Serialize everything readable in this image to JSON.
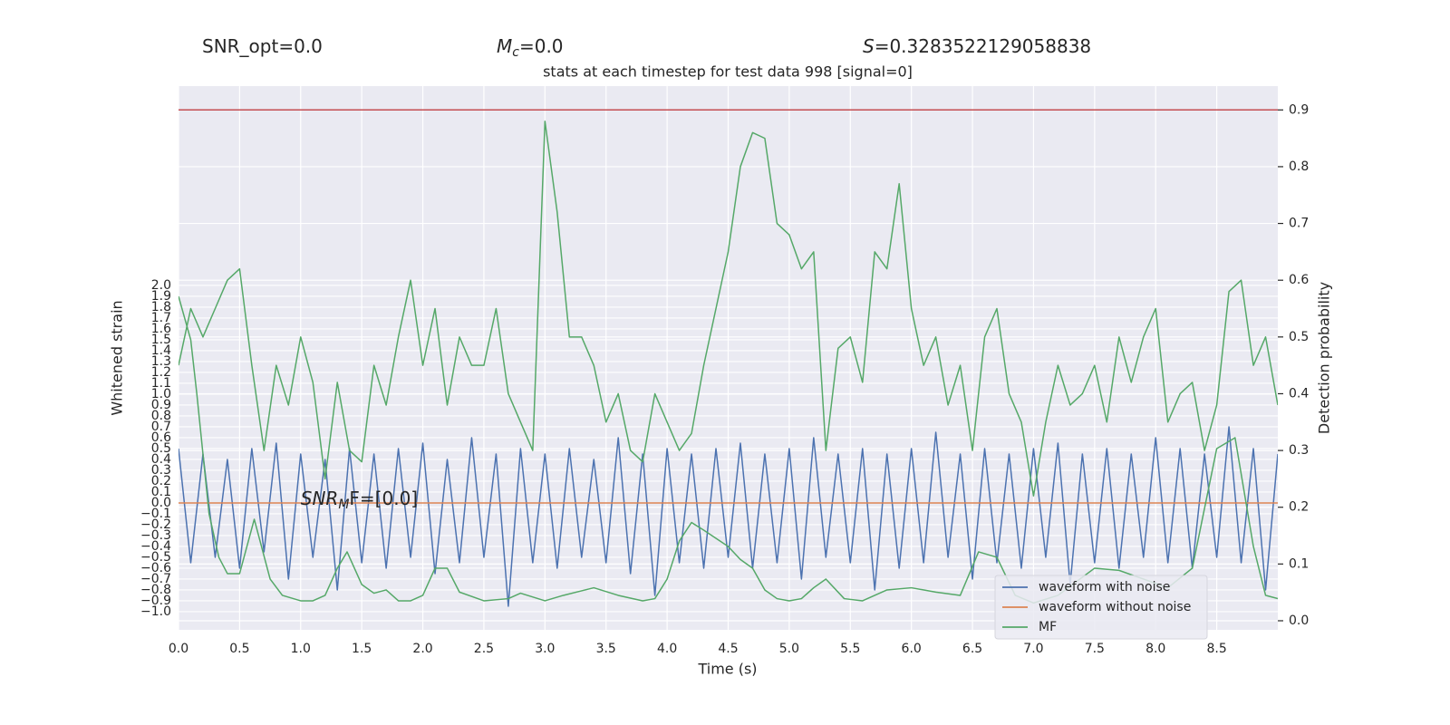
{
  "chart_data": {
    "type": "line",
    "title": "stats at each timestep for test data 998 [signal=0]",
    "header": [
      {
        "text": "SNR_opt=0.0"
      },
      {
        "symbol": "M",
        "subscript": "c",
        "text": "=0.0"
      },
      {
        "symbol": "S",
        "text": "=0.3283522129058838"
      }
    ],
    "annotation": {
      "symbol": "SNR",
      "subscript": "M",
      "text": "F=[0.0]",
      "x": 1.0,
      "y": 0.0
    },
    "xlabel": "Time (s)",
    "ylabel": "Whitened strain",
    "y2label": "Detection probability",
    "xlim": [
      0,
      9
    ],
    "ylim": [
      -1.167,
      3.833
    ],
    "y2lim": [
      -0.016,
      0.942
    ],
    "xticks": [
      {
        "value": 0,
        "label": "0.0"
      },
      0.5,
      {
        "value": 1,
        "label": "1.0"
      },
      1.5,
      {
        "value": 2,
        "label": "2.0"
      },
      2.5,
      {
        "value": 3,
        "label": "3.0"
      },
      3.5,
      {
        "value": 4,
        "label": "4.0"
      },
      4.5,
      {
        "value": 5,
        "label": "5.0"
      },
      5.5,
      {
        "value": 6,
        "label": "6.0"
      },
      6.5,
      {
        "value": 7,
        "label": "7.0"
      },
      7.5,
      {
        "value": 8,
        "label": "8.0"
      },
      8.5
    ],
    "yticks": [
      {
        "value": -1,
        "label": "−1.0"
      },
      {
        "value": -0.9,
        "label": "−0.9"
      },
      {
        "value": -0.8,
        "label": "−0.8"
      },
      {
        "value": -0.7,
        "label": "−0.7"
      },
      {
        "value": -0.6,
        "label": "−0.6"
      },
      {
        "value": -0.5,
        "label": "−0.5"
      },
      {
        "value": -0.4,
        "label": "−0.4"
      },
      {
        "value": -0.3,
        "label": "−0.3"
      },
      {
        "value": -0.2,
        "label": "−0.2"
      },
      {
        "value": -0.1,
        "label": "−0.1"
      },
      {
        "value": 0,
        "label": "0.0"
      },
      0.1,
      0.2,
      0.3,
      0.4,
      0.5,
      0.6,
      0.7,
      0.8,
      0.9,
      {
        "value": 1,
        "label": "1.0"
      },
      1.1,
      1.2,
      1.3,
      1.4,
      1.5,
      1.6,
      1.7,
      1.8,
      1.9,
      {
        "value": 2,
        "label": "2.0"
      }
    ],
    "y2ticks": [
      {
        "value": 0,
        "label": "0.0"
      },
      0.1,
      0.2,
      0.3,
      0.4,
      0.5,
      0.6,
      0.7,
      0.8,
      0.9
    ],
    "grid": true,
    "legend": "lower right",
    "x": [
      0,
      0.1,
      0.2,
      0.3,
      0.4,
      0.5,
      0.6,
      0.7,
      0.8,
      0.9,
      1,
      1.1,
      1.2,
      1.3,
      1.4,
      1.5,
      1.6,
      1.7,
      1.8,
      1.9,
      2,
      2.1,
      2.2,
      2.3,
      2.4,
      2.5,
      2.6,
      2.7,
      2.8,
      2.9,
      3,
      3.1,
      3.2,
      3.3,
      3.4,
      3.5,
      3.6,
      3.7,
      3.8,
      3.9,
      4,
      4.1,
      4.2,
      4.3,
      4.4,
      4.5,
      4.6,
      4.7,
      4.8,
      4.9,
      5,
      5.1,
      5.2,
      5.3,
      5.4,
      5.5,
      5.6,
      5.7,
      5.8,
      5.9,
      6,
      6.1,
      6.2,
      6.3,
      6.4,
      6.5,
      6.6,
      6.7,
      6.8,
      6.9,
      7,
      7.1,
      7.2,
      7.3,
      7.4,
      7.5,
      7.6,
      7.7,
      7.8,
      7.9,
      8,
      8.1,
      8.2,
      8.3,
      8.4,
      8.5,
      8.6,
      8.7,
      8.8,
      8.9,
      9
    ],
    "series": [
      {
        "name": "waveform with noise",
        "color": "#4c72b0",
        "values": [
          0.5,
          -0.55,
          0.45,
          -0.5,
          0.4,
          -0.6,
          0.5,
          -0.45,
          0.55,
          -0.7,
          0.45,
          -0.5,
          0.4,
          -0.8,
          0.5,
          -0.55,
          0.45,
          -0.6,
          0.5,
          -0.5,
          0.55,
          -0.65,
          0.4,
          -0.55,
          0.6,
          -0.5,
          0.45,
          -0.95,
          0.5,
          -0.55,
          0.45,
          -0.6,
          0.5,
          -0.5,
          0.4,
          -0.55,
          0.6,
          -0.65,
          0.45,
          -0.85,
          0.5,
          -0.55,
          0.45,
          -0.6,
          0.5,
          -0.5,
          0.55,
          -0.6,
          0.45,
          -0.55,
          0.5,
          -0.7,
          0.6,
          -0.5,
          0.45,
          -0.55,
          0.5,
          -0.8,
          0.45,
          -0.6,
          0.5,
          -0.55,
          0.65,
          -0.5,
          0.45,
          -0.7,
          0.5,
          -0.55,
          0.45,
          -0.6,
          0.5,
          -0.5,
          0.55,
          -0.75,
          0.45,
          -0.55,
          0.5,
          -0.6,
          0.45,
          -0.5,
          0.6,
          -0.55,
          0.5,
          -0.6,
          0.45,
          -0.5,
          0.7,
          -0.55,
          0.5,
          -0.8,
          0.45
        ]
      },
      {
        "name": "waveform without noise",
        "color": "#dd8452",
        "x": [
          0,
          9
        ],
        "values": [
          0,
          0
        ]
      },
      {
        "name": "MF",
        "color": "#55a868",
        "x": [
          0,
          0.1,
          0.15,
          0.25,
          0.33,
          0.4,
          0.5,
          0.62,
          0.75,
          0.85,
          1.0,
          1.1,
          1.2,
          1.3,
          1.38,
          1.5,
          1.6,
          1.7,
          1.8,
          1.9,
          2.0,
          2.1,
          2.2,
          2.3,
          2.5,
          2.7,
          2.8,
          3.0,
          3.15,
          3.4,
          3.6,
          3.8,
          3.9,
          4.0,
          4.1,
          4.2,
          4.3,
          4.5,
          4.6,
          4.7,
          4.8,
          4.9,
          5.0,
          5.1,
          5.2,
          5.3,
          5.45,
          5.6,
          5.8,
          6.0,
          6.2,
          6.4,
          6.55,
          6.7,
          6.85,
          7.0,
          7.2,
          7.5,
          7.7,
          7.9,
          8.1,
          8.3,
          8.5,
          8.65,
          8.8,
          8.9,
          9.0
        ],
        "values": [
          1.9,
          1.5,
          1.0,
          -0.1,
          -0.5,
          -0.65,
          -0.65,
          -0.15,
          -0.7,
          -0.85,
          -0.9,
          -0.9,
          -0.85,
          -0.6,
          -0.45,
          -0.75,
          -0.83,
          -0.8,
          -0.9,
          -0.9,
          -0.85,
          -0.6,
          -0.6,
          -0.82,
          -0.9,
          -0.88,
          -0.83,
          -0.9,
          -0.85,
          -0.78,
          -0.85,
          -0.9,
          -0.88,
          -0.7,
          -0.35,
          -0.18,
          -0.25,
          -0.4,
          -0.52,
          -0.6,
          -0.8,
          -0.88,
          -0.9,
          -0.88,
          -0.78,
          -0.7,
          -0.88,
          -0.9,
          -0.8,
          -0.78,
          -0.82,
          -0.85,
          -0.45,
          -0.5,
          -0.85,
          -0.92,
          -0.85,
          -0.6,
          -0.62,
          -0.7,
          -0.78,
          -0.6,
          0.5,
          0.6,
          -0.4,
          -0.85,
          -0.88
        ]
      },
      {
        "color": "#55a868",
        "axis": "y2",
        "values": [
          0.45,
          0.55,
          0.5,
          0.55,
          0.6,
          0.62,
          0.45,
          0.3,
          0.45,
          0.38,
          0.5,
          0.42,
          0.25,
          0.42,
          0.3,
          0.28,
          0.45,
          0.38,
          0.5,
          0.6,
          0.45,
          0.55,
          0.38,
          0.5,
          0.45,
          0.45,
          0.55,
          0.4,
          0.35,
          0.3,
          0.88,
          0.72,
          0.5,
          0.5,
          0.45,
          0.35,
          0.4,
          0.3,
          0.28,
          0.4,
          0.35,
          0.3,
          0.33,
          0.45,
          0.55,
          0.65,
          0.8,
          0.86,
          0.85,
          0.7,
          0.68,
          0.62,
          0.65,
          0.3,
          0.48,
          0.5,
          0.42,
          0.65,
          0.62,
          0.77,
          0.55,
          0.45,
          0.5,
          0.38,
          0.45,
          0.3,
          0.5,
          0.55,
          0.4,
          0.35,
          0.22,
          0.35,
          0.45,
          0.38,
          0.4,
          0.45,
          0.35,
          0.5,
          0.42,
          0.5,
          0.55,
          0.35,
          0.4,
          0.42,
          0.3,
          0.38,
          0.58,
          0.6,
          0.45,
          0.5,
          0.38
        ]
      },
      {
        "color": "#c44e52",
        "axis": "y2",
        "x": [
          0,
          9
        ],
        "values": [
          0.9,
          0.9
        ]
      }
    ]
  }
}
